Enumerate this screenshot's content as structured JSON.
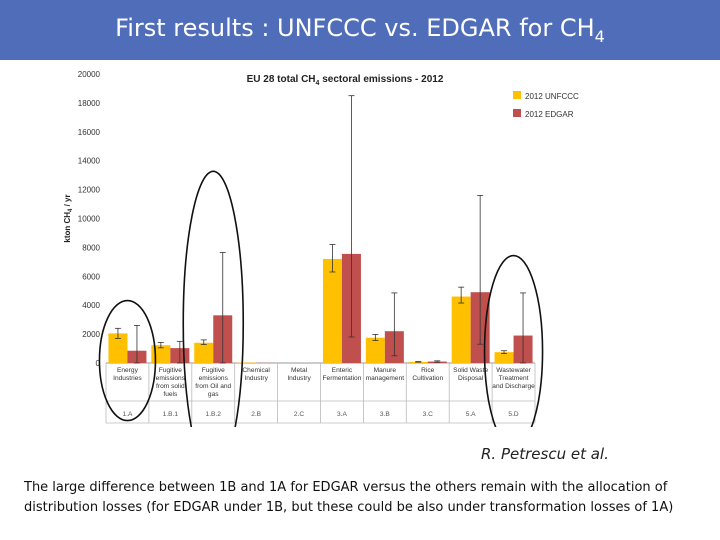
{
  "slide": {
    "title_prefix": "First results : UNFCCC vs. EDGAR for CH",
    "title_sub": "4",
    "author": "R. Petrescu et al.",
    "note": "The large difference between 1B and 1A for EDGAR versus the others remain with the allocation of distribution losses (for EDGAR under 1B, but these could be also under transformation losses of 1A)"
  },
  "chart_data": {
    "type": "bar",
    "title_prefix": "EU 28 total CH",
    "title_sub": "4",
    "title_suffix": " sectoral emissions  - 2012",
    "ylabel_prefix": "kton CH",
    "ylabel_sub": "4",
    "ylabel_suffix": " / yr",
    "ylim": [
      0,
      20000
    ],
    "yticks": [
      "0",
      "2000",
      "4000",
      "6000",
      "8000",
      "10000",
      "12000",
      "14000",
      "16000",
      "18000",
      "20000"
    ],
    "legend_position": "top-right",
    "categories": [
      {
        "lines": [
          "Energy",
          "Industries"
        ],
        "code": "1.A"
      },
      {
        "lines": [
          "Fugitive",
          "emissions",
          "from solid",
          "fuels"
        ],
        "code": "1.B.1"
      },
      {
        "lines": [
          "Fugitive",
          "emissions",
          "from Oil and",
          "gas"
        ],
        "code": "1.B.2"
      },
      {
        "lines": [
          "Chemical",
          "Industry"
        ],
        "code": "2.B"
      },
      {
        "lines": [
          "Metal",
          "Industry"
        ],
        "code": "2.C"
      },
      {
        "lines": [
          "Enteric",
          "Fermentation"
        ],
        "code": "3.A"
      },
      {
        "lines": [
          "Manure",
          "management"
        ],
        "code": "3.B"
      },
      {
        "lines": [
          "Rice",
          "Cultivation"
        ],
        "code": "3.C"
      },
      {
        "lines": [
          "Solid Waste",
          "Disposal"
        ],
        "code": "5.A"
      },
      {
        "lines": [
          "Wastewater",
          "Treatment",
          "and Discharge"
        ],
        "code": "5.D"
      }
    ],
    "series": [
      {
        "name": "2012 UNFCCC",
        "color": "#ffc000",
        "values": [
          2050,
          1230,
          1400,
          30,
          0,
          7200,
          1750,
          80,
          4600,
          750
        ],
        "err_low": [
          1700,
          1050,
          1280,
          0,
          0,
          6300,
          1550,
          60,
          4150,
          650
        ],
        "err_high": [
          2400,
          1420,
          1600,
          0,
          0,
          8200,
          1980,
          100,
          5250,
          850
        ]
      },
      {
        "name": "2012 EDGAR",
        "color": "#c0504d",
        "values": [
          850,
          1030,
          3300,
          10,
          0,
          7550,
          2200,
          100,
          4900,
          1900
        ],
        "err_low": [
          0,
          0,
          0,
          0,
          0,
          1800,
          500,
          50,
          1300,
          0
        ],
        "err_high": [
          2600,
          1500,
          7650,
          0,
          0,
          18500,
          4850,
          150,
          11600,
          4850
        ]
      }
    ],
    "highlight_ellipses": [
      "1.A",
      "1.B.2",
      "5.D"
    ]
  }
}
